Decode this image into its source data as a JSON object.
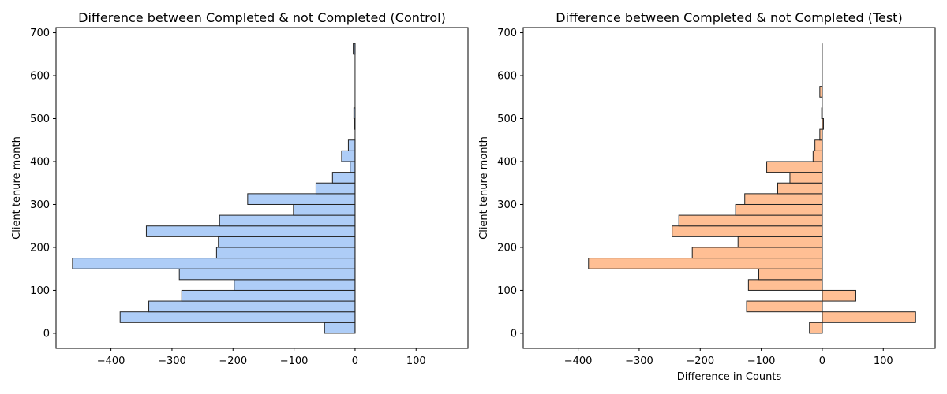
{
  "chart_data": [
    {
      "type": "bar",
      "orientation": "horizontal",
      "title": "Difference between Completed & not Completed (Control)",
      "xlabel": "",
      "ylabel": "Client tenure month",
      "xlim": [
        -490,
        185
      ],
      "ylim": [
        -35,
        712
      ],
      "xticks": [
        -400,
        -300,
        -200,
        -100,
        0,
        100
      ],
      "yticks": [
        0,
        100,
        200,
        300,
        400,
        500,
        600,
        700
      ],
      "xtick_labels": [
        "−400",
        "−300",
        "−200",
        "−100",
        "0",
        "100"
      ],
      "ytick_labels": [
        "0",
        "100",
        "200",
        "300",
        "400",
        "500",
        "600",
        "700"
      ],
      "grid": false,
      "bar_color": "#aecdf7",
      "edge_color": "#222222",
      "bin_width": 25,
      "zero_line": [
        0,
        675
      ],
      "bins": [
        {
          "y": 0,
          "value": -50
        },
        {
          "y": 25,
          "value": -385
        },
        {
          "y": 50,
          "value": -338
        },
        {
          "y": 75,
          "value": -284
        },
        {
          "y": 100,
          "value": -198
        },
        {
          "y": 125,
          "value": -288
        },
        {
          "y": 150,
          "value": -463
        },
        {
          "y": 175,
          "value": -227
        },
        {
          "y": 200,
          "value": -224
        },
        {
          "y": 225,
          "value": -342
        },
        {
          "y": 250,
          "value": -222
        },
        {
          "y": 275,
          "value": -101
        },
        {
          "y": 300,
          "value": -176
        },
        {
          "y": 325,
          "value": -64
        },
        {
          "y": 350,
          "value": -37
        },
        {
          "y": 375,
          "value": -8
        },
        {
          "y": 400,
          "value": -22
        },
        {
          "y": 425,
          "value": -11
        },
        {
          "y": 450,
          "value": 0
        },
        {
          "y": 475,
          "value": -1
        },
        {
          "y": 500,
          "value": -2
        },
        {
          "y": 525,
          "value": 0
        },
        {
          "y": 550,
          "value": 0
        },
        {
          "y": 575,
          "value": 0
        },
        {
          "y": 600,
          "value": 0
        },
        {
          "y": 625,
          "value": 0
        },
        {
          "y": 650,
          "value": -3
        }
      ]
    },
    {
      "type": "bar",
      "orientation": "horizontal",
      "title": "Difference between Completed & not Completed (Test)",
      "xlabel": "Difference in Counts",
      "ylabel": "Client tenure month",
      "xlim": [
        -490,
        185
      ],
      "ylim": [
        -35,
        712
      ],
      "xticks": [
        -400,
        -300,
        -200,
        -100,
        0,
        100
      ],
      "yticks": [
        0,
        100,
        200,
        300,
        400,
        500,
        600,
        700
      ],
      "xtick_labels": [
        "−400",
        "−300",
        "−200",
        "−100",
        "0",
        "100"
      ],
      "ytick_labels": [
        "0",
        "100",
        "200",
        "300",
        "400",
        "500",
        "600",
        "700"
      ],
      "grid": false,
      "bar_color": "#ffbf94",
      "edge_color": "#222222",
      "bin_width": 25,
      "zero_line": [
        0,
        675
      ],
      "bins": [
        {
          "y": 0,
          "value": -21
        },
        {
          "y": 25,
          "value": 153
        },
        {
          "y": 50,
          "value": -124
        },
        {
          "y": 75,
          "value": 55
        },
        {
          "y": 100,
          "value": -121
        },
        {
          "y": 125,
          "value": -104
        },
        {
          "y": 150,
          "value": -383
        },
        {
          "y": 175,
          "value": -213
        },
        {
          "y": 200,
          "value": -138
        },
        {
          "y": 225,
          "value": -246
        },
        {
          "y": 250,
          "value": -235
        },
        {
          "y": 275,
          "value": -142
        },
        {
          "y": 300,
          "value": -127
        },
        {
          "y": 325,
          "value": -73
        },
        {
          "y": 350,
          "value": -53
        },
        {
          "y": 375,
          "value": -91
        },
        {
          "y": 400,
          "value": -15
        },
        {
          "y": 425,
          "value": -12
        },
        {
          "y": 450,
          "value": -4
        },
        {
          "y": 475,
          "value": 2
        },
        {
          "y": 500,
          "value": -1
        },
        {
          "y": 525,
          "value": 0
        },
        {
          "y": 550,
          "value": -4
        },
        {
          "y": 575,
          "value": 0
        },
        {
          "y": 600,
          "value": 0
        },
        {
          "y": 625,
          "value": 0
        },
        {
          "y": 650,
          "value": 0
        }
      ]
    }
  ]
}
